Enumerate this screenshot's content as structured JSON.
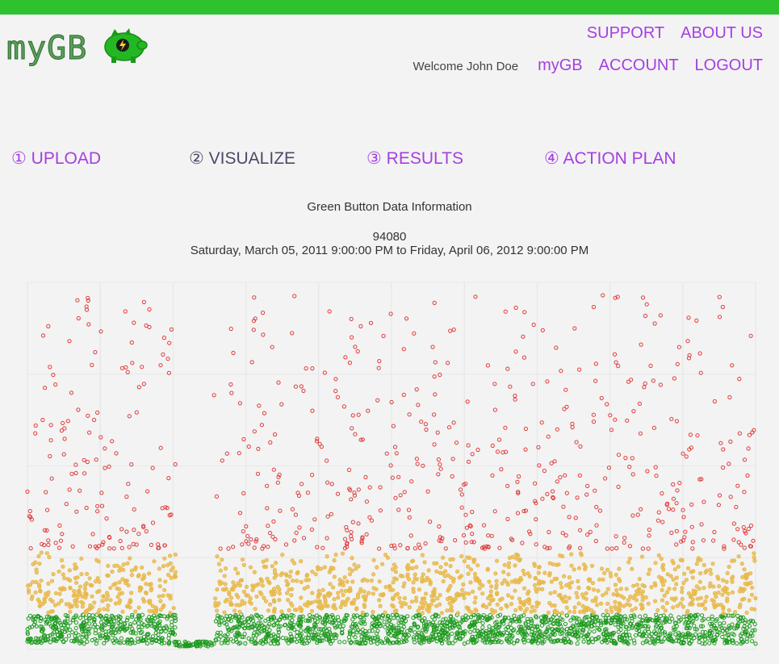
{
  "brand": {
    "logo_text": "myGB",
    "logo_icon": "piggy-bank-bolt-icon",
    "accent_color": "#2ec22e"
  },
  "topnav": {
    "support": "SUPPORT",
    "about": "ABOUT US"
  },
  "usernav": {
    "welcome": "Welcome John Doe",
    "mygb": "myGB",
    "account": "ACCOUNT",
    "logout": "LOGOUT"
  },
  "steps": [
    {
      "label": "① UPLOAD",
      "active": false
    },
    {
      "label": "② VISUALIZE",
      "active": true
    },
    {
      "label": "③ RESULTS",
      "active": false
    },
    {
      "label": "④ ACTION PLAN",
      "active": false
    }
  ],
  "info": {
    "title": "Green Button Data Information",
    "zip": "94080",
    "range": "Saturday, March 05, 2011 9:00:00 PM to Friday, April 06, 2012 9:00:00 PM"
  },
  "chart_data": {
    "type": "scatter",
    "x_range": [
      "2011-03-05",
      "2012-04-06"
    ],
    "bands": [
      {
        "level": "low",
        "color": "#1e9a1e"
      },
      {
        "level": "medium",
        "color": "#e8b84a"
      },
      {
        "level": "high",
        "color": "#e03a3a"
      }
    ],
    "gap": {
      "start": "2011-05-25",
      "end": "2011-06-15"
    },
    "grid": true
  }
}
